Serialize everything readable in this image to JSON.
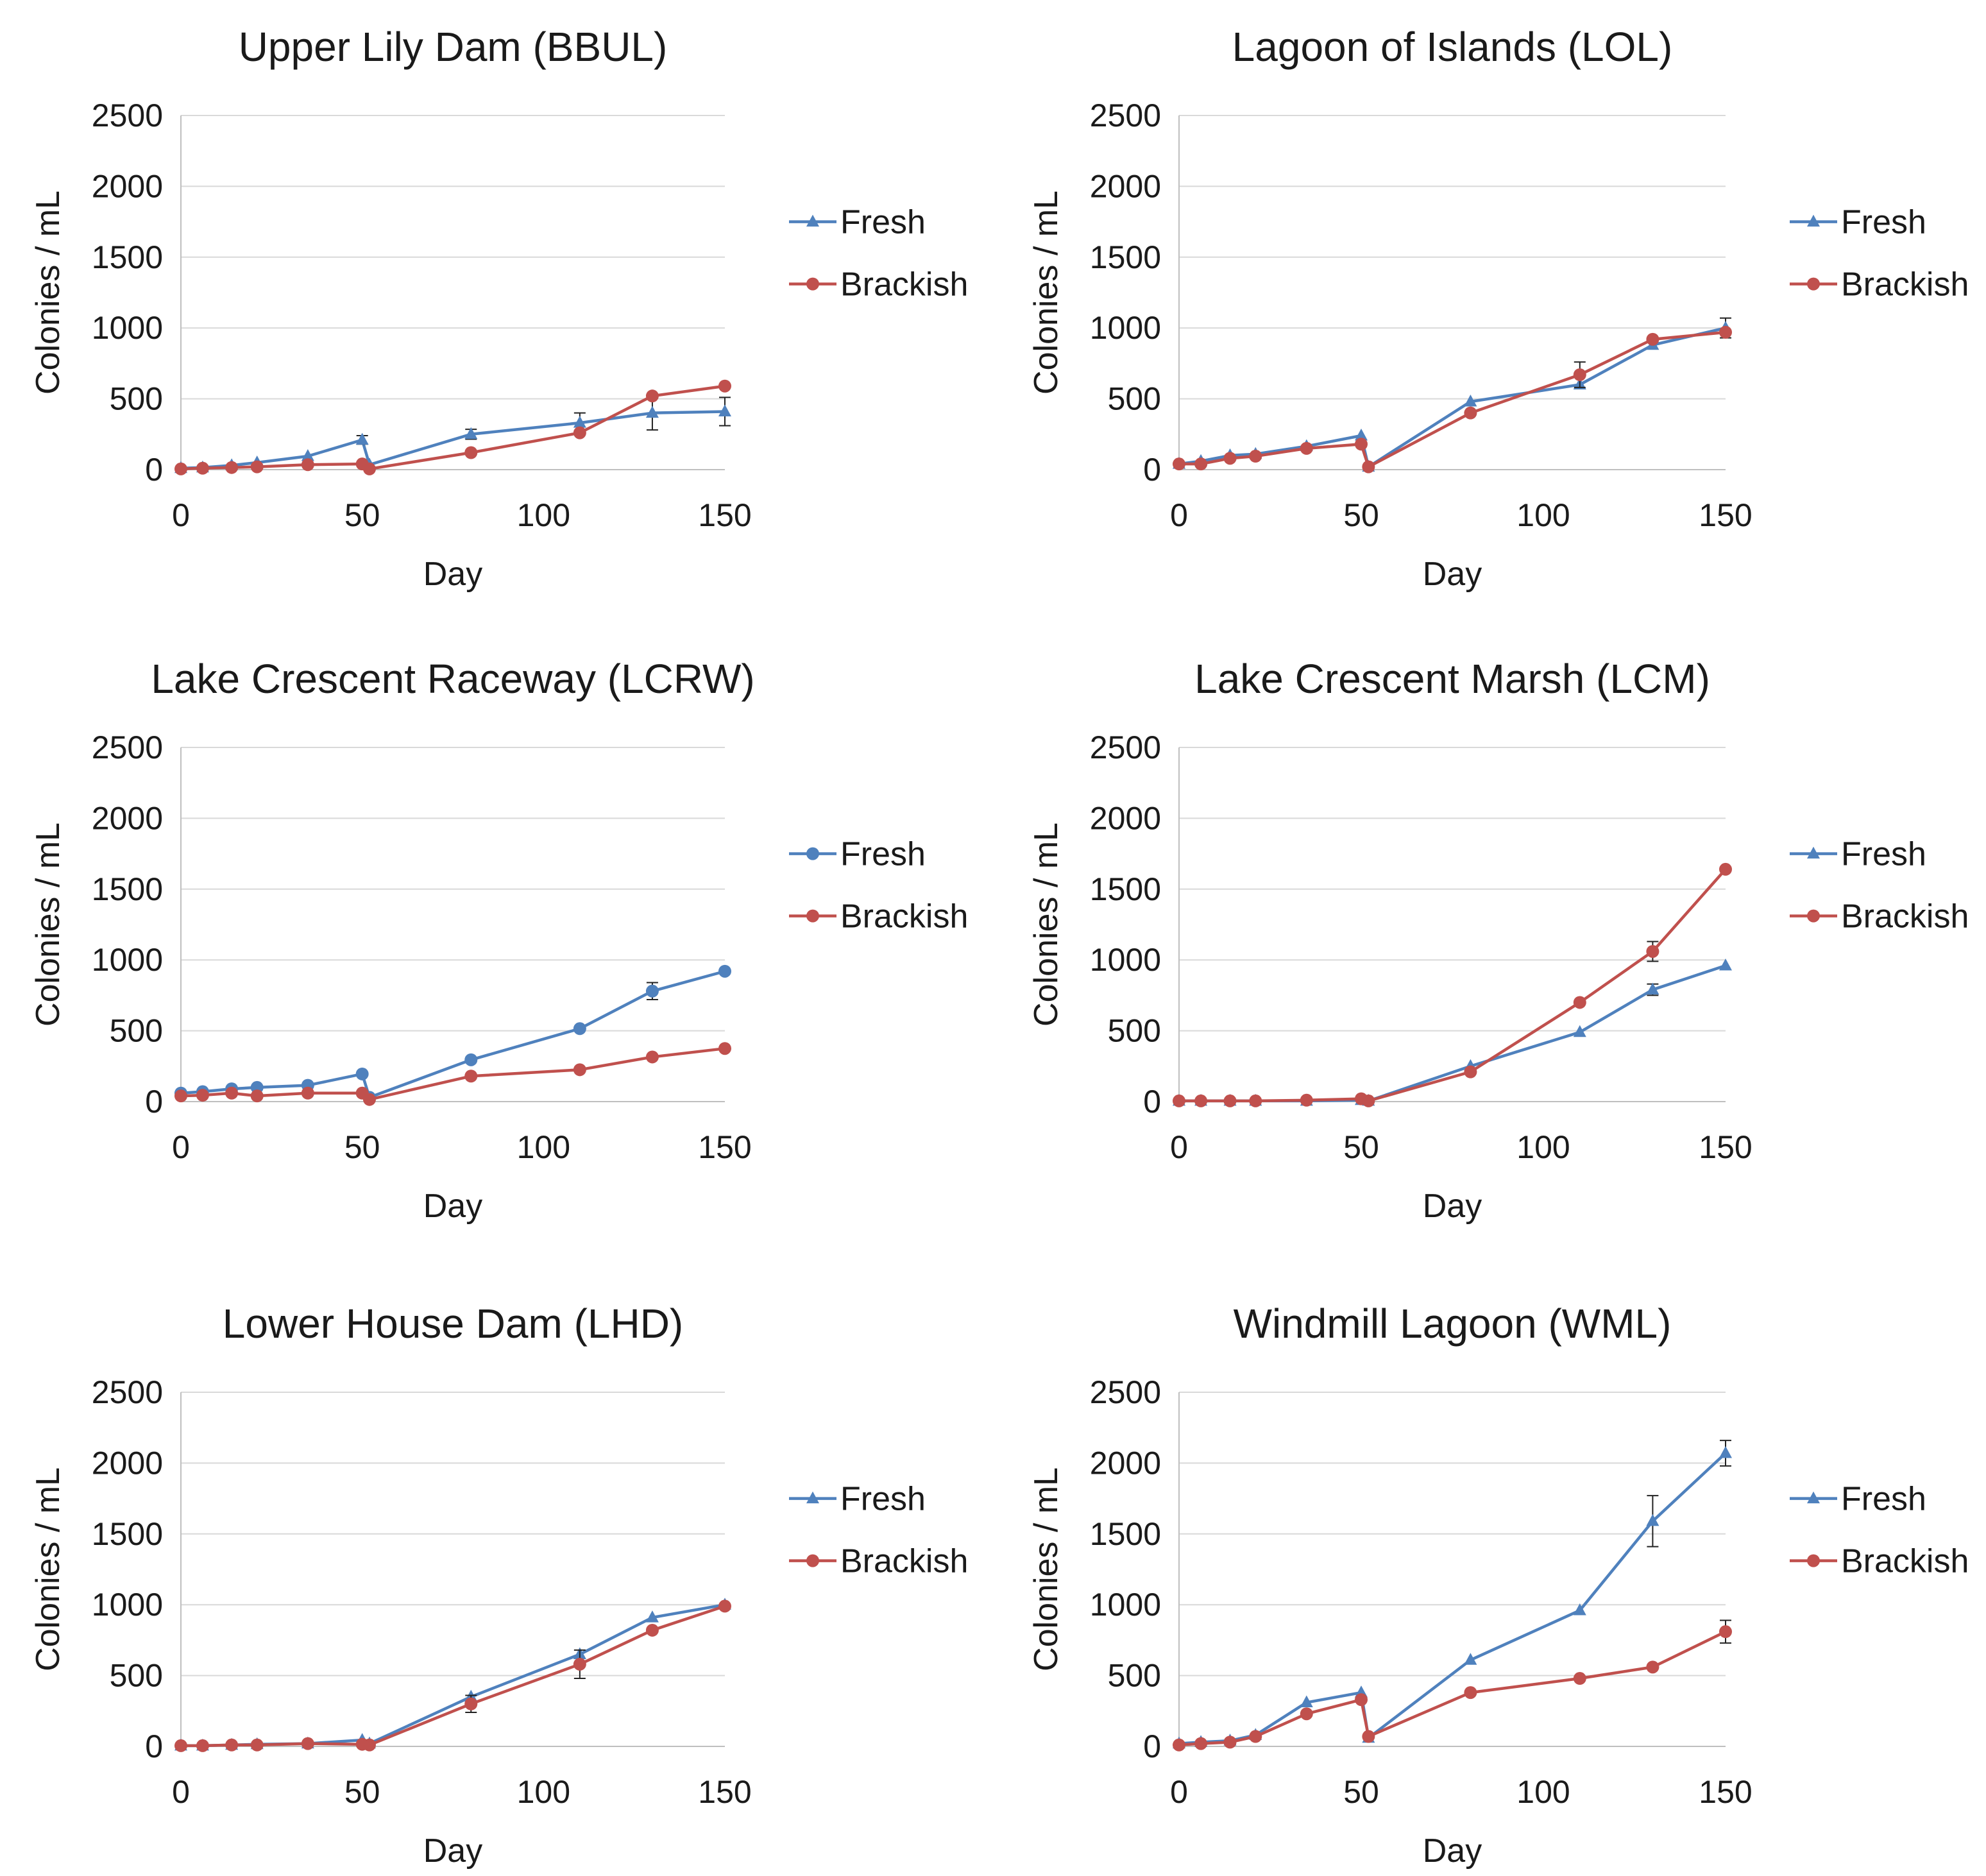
{
  "chart_data": [
    {
      "type": "line",
      "title": "Upper Lily Dam (BBUL)",
      "xlabel": "Day",
      "ylabel": "Colonies / mL",
      "xlim": [
        0,
        150
      ],
      "ylim": [
        0,
        2500
      ],
      "xticks": [
        0,
        50,
        100,
        150
      ],
      "yticks": [
        0,
        500,
        1000,
        1500,
        2000,
        2500
      ],
      "ygrid": true,
      "legend": "right",
      "series": [
        {
          "name": "Fresh",
          "color": "#4F81BD",
          "marker": "triangle",
          "x": [
            0,
            6,
            14,
            21,
            35,
            50,
            52,
            80,
            110,
            130,
            150
          ],
          "y": [
            10,
            15,
            30,
            50,
            95,
            210,
            35,
            250,
            330,
            400,
            410
          ],
          "err": [
            0,
            0,
            0,
            0,
            0,
            30,
            0,
            35,
            70,
            120,
            100
          ]
        },
        {
          "name": "Brackish",
          "color": "#C0504D",
          "marker": "circle",
          "x": [
            0,
            6,
            14,
            21,
            35,
            50,
            52,
            80,
            110,
            130,
            150
          ],
          "y": [
            5,
            10,
            15,
            20,
            35,
            40,
            5,
            120,
            260,
            520,
            590
          ],
          "err": [
            0,
            0,
            0,
            0,
            0,
            0,
            0,
            0,
            0,
            0,
            0
          ]
        }
      ]
    },
    {
      "type": "line",
      "title": "Lagoon of Islands (LOL)",
      "xlabel": "Day",
      "ylabel": "Colonies / mL",
      "xlim": [
        0,
        150
      ],
      "ylim": [
        0,
        2500
      ],
      "xticks": [
        0,
        50,
        100,
        150
      ],
      "yticks": [
        0,
        500,
        1000,
        1500,
        2000,
        2500
      ],
      "ygrid": true,
      "legend": "right",
      "series": [
        {
          "name": "Fresh",
          "color": "#4F81BD",
          "marker": "triangle",
          "x": [
            0,
            6,
            14,
            21,
            35,
            50,
            52,
            80,
            110,
            130,
            150
          ],
          "y": [
            40,
            60,
            100,
            110,
            165,
            240,
            20,
            480,
            600,
            880,
            1000
          ],
          "err": [
            0,
            0,
            0,
            0,
            0,
            0,
            0,
            0,
            0,
            0,
            70
          ]
        },
        {
          "name": "Brackish",
          "color": "#C0504D",
          "marker": "circle",
          "x": [
            0,
            6,
            14,
            21,
            35,
            50,
            52,
            80,
            110,
            130,
            150
          ],
          "y": [
            40,
            40,
            80,
            95,
            150,
            180,
            20,
            400,
            670,
            920,
            970
          ],
          "err": [
            0,
            0,
            0,
            0,
            0,
            0,
            0,
            0,
            90,
            0,
            0
          ]
        }
      ]
    },
    {
      "type": "line",
      "title": "Lake Crescent Raceway (LCRW)",
      "xlabel": "Day",
      "ylabel": "Colonies / mL",
      "xlim": [
        0,
        150
      ],
      "ylim": [
        0,
        2500
      ],
      "xticks": [
        0,
        50,
        100,
        150
      ],
      "yticks": [
        0,
        500,
        1000,
        1500,
        2000,
        2500
      ],
      "ygrid": true,
      "legend": "right",
      "series": [
        {
          "name": "Fresh",
          "color": "#4F81BD",
          "marker": "circle",
          "x": [
            0,
            6,
            14,
            21,
            35,
            50,
            52,
            80,
            110,
            130,
            150
          ],
          "y": [
            60,
            70,
            90,
            100,
            115,
            195,
            30,
            295,
            515,
            780,
            920
          ],
          "err": [
            0,
            0,
            0,
            0,
            0,
            0,
            0,
            0,
            0,
            60,
            0
          ]
        },
        {
          "name": "Brackish",
          "color": "#C0504D",
          "marker": "circle",
          "x": [
            0,
            6,
            14,
            21,
            35,
            50,
            52,
            80,
            110,
            130,
            150
          ],
          "y": [
            40,
            45,
            60,
            40,
            60,
            60,
            15,
            180,
            225,
            315,
            375
          ],
          "err": [
            0,
            0,
            0,
            0,
            0,
            0,
            0,
            0,
            0,
            0,
            0
          ]
        }
      ]
    },
    {
      "type": "line",
      "title": "Lake Crescent Marsh (LCM)",
      "xlabel": "Day",
      "ylabel": "Colonies / mL",
      "xlim": [
        0,
        150
      ],
      "ylim": [
        0,
        2500
      ],
      "xticks": [
        0,
        50,
        100,
        150
      ],
      "yticks": [
        0,
        500,
        1000,
        1500,
        2000,
        2500
      ],
      "ygrid": true,
      "legend": "right",
      "series": [
        {
          "name": "Fresh",
          "color": "#4F81BD",
          "marker": "triangle",
          "x": [
            0,
            6,
            14,
            21,
            35,
            50,
            52,
            80,
            110,
            130,
            150
          ],
          "y": [
            5,
            5,
            5,
            5,
            5,
            10,
            5,
            250,
            490,
            790,
            960
          ],
          "err": [
            0,
            0,
            0,
            0,
            0,
            0,
            0,
            0,
            0,
            40,
            0
          ]
        },
        {
          "name": "Brackish",
          "color": "#C0504D",
          "marker": "circle",
          "x": [
            0,
            6,
            14,
            21,
            35,
            50,
            52,
            80,
            110,
            130,
            150
          ],
          "y": [
            5,
            5,
            5,
            5,
            10,
            20,
            5,
            210,
            700,
            1060,
            1640
          ],
          "err": [
            0,
            0,
            0,
            0,
            0,
            0,
            0,
            0,
            0,
            70,
            0
          ]
        }
      ]
    },
    {
      "type": "line",
      "title": "Lower House Dam (LHD)",
      "xlabel": "Day",
      "ylabel": "Colonies / mL",
      "xlim": [
        0,
        150
      ],
      "ylim": [
        0,
        2500
      ],
      "xticks": [
        0,
        50,
        100,
        150
      ],
      "yticks": [
        0,
        500,
        1000,
        1500,
        2000,
        2500
      ],
      "ygrid": true,
      "legend": "right",
      "series": [
        {
          "name": "Fresh",
          "color": "#4F81BD",
          "marker": "triangle",
          "x": [
            0,
            6,
            14,
            21,
            35,
            50,
            52,
            80,
            110,
            130,
            150
          ],
          "y": [
            5,
            5,
            10,
            15,
            20,
            45,
            20,
            350,
            650,
            910,
            1000
          ],
          "err": [
            0,
            0,
            0,
            0,
            0,
            0,
            0,
            0,
            0,
            0,
            0
          ]
        },
        {
          "name": "Brackish",
          "color": "#C0504D",
          "marker": "circle",
          "x": [
            0,
            6,
            14,
            21,
            35,
            50,
            52,
            80,
            110,
            130,
            150
          ],
          "y": [
            5,
            5,
            10,
            10,
            20,
            15,
            10,
            300,
            580,
            820,
            990
          ],
          "err": [
            0,
            0,
            0,
            0,
            0,
            0,
            0,
            60,
            100,
            0,
            0
          ]
        }
      ]
    },
    {
      "type": "line",
      "title": "Windmill Lagoon (WML)",
      "xlabel": "Day",
      "ylabel": "Colonies / mL",
      "xlim": [
        0,
        150
      ],
      "ylim": [
        0,
        2500
      ],
      "xticks": [
        0,
        50,
        100,
        150
      ],
      "yticks": [
        0,
        500,
        1000,
        1500,
        2000,
        2500
      ],
      "ygrid": true,
      "legend": "right",
      "series": [
        {
          "name": "Fresh",
          "color": "#4F81BD",
          "marker": "triangle",
          "x": [
            0,
            6,
            14,
            21,
            35,
            50,
            52,
            80,
            110,
            130,
            150
          ],
          "y": [
            20,
            30,
            40,
            80,
            310,
            380,
            60,
            610,
            960,
            1590,
            2070
          ],
          "err": [
            0,
            0,
            0,
            0,
            0,
            0,
            0,
            0,
            0,
            180,
            90
          ]
        },
        {
          "name": "Brackish",
          "color": "#C0504D",
          "marker": "circle",
          "x": [
            0,
            6,
            14,
            21,
            35,
            50,
            52,
            80,
            110,
            130,
            150
          ],
          "y": [
            10,
            20,
            30,
            70,
            230,
            330,
            70,
            380,
            480,
            560,
            810
          ],
          "err": [
            0,
            0,
            0,
            0,
            0,
            0,
            0,
            0,
            0,
            0,
            80
          ]
        }
      ]
    }
  ]
}
